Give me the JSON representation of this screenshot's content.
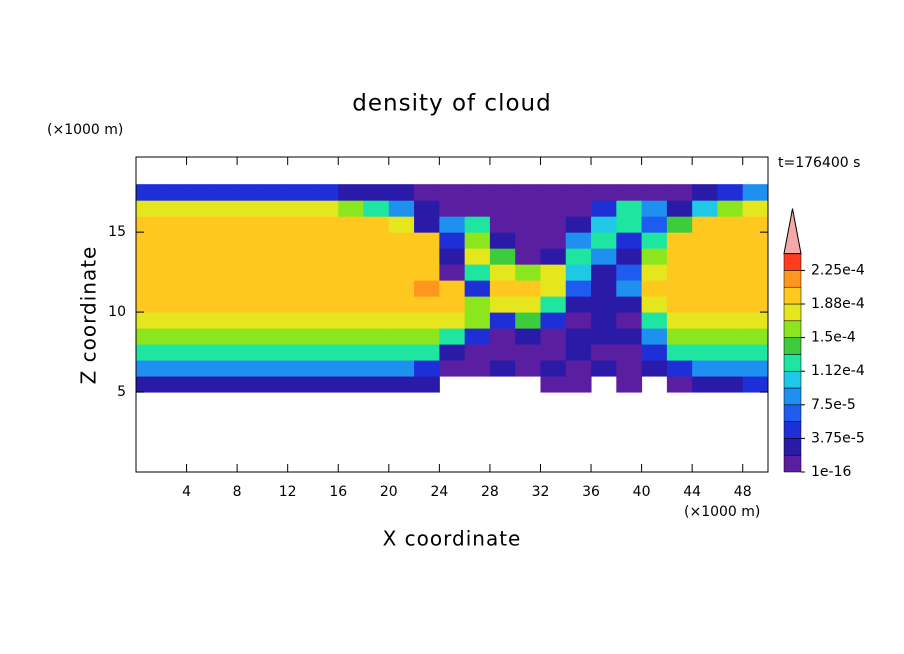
{
  "chart_data": {
    "type": "contour",
    "title": "density of cloud",
    "x_label": "X coordinate",
    "y_label": "Z coordinate",
    "x_unit": "(×1000 m)",
    "y_unit": "(×1000 m)",
    "time_label": "t=176400 s",
    "xlim": [
      0,
      50
    ],
    "ylim": [
      0,
      19.7
    ],
    "xticks": [
      4,
      8,
      12,
      16,
      20,
      24,
      28,
      32,
      36,
      40,
      44,
      48
    ],
    "yticks": [
      5,
      10,
      15
    ],
    "x": [
      1,
      3,
      5,
      7,
      9,
      11,
      13,
      15,
      17,
      19,
      21,
      23,
      25,
      27,
      29,
      31,
      33,
      35,
      37,
      39,
      41,
      43,
      45,
      47,
      49
    ],
    "z": [
      5.5,
      6.5,
      7.5,
      8.5,
      9.5,
      10.5,
      11.5,
      12.5,
      13.5,
      14.5,
      15.5,
      16.5,
      17.5
    ],
    "values": [
      [
        3e-05,
        3e-05,
        3e-05,
        3e-05,
        3e-05,
        3e-05,
        3e-05,
        3e-05,
        3e-05,
        3e-05,
        3e-05,
        2e-05,
        null,
        null,
        null,
        null,
        1e-05,
        1e-05,
        null,
        1e-05,
        null,
        1e-05,
        2e-05,
        3e-05,
        4e-05
      ],
      [
        8e-05,
        8e-05,
        8e-05,
        8e-05,
        8e-05,
        8e-05,
        8e-05,
        8e-05,
        8e-05,
        8e-05,
        8e-05,
        4e-05,
        1e-05,
        1e-05,
        2e-05,
        1e-05,
        2e-05,
        1e-05,
        2e-05,
        1e-05,
        2e-05,
        5e-05,
        8e-05,
        8e-05,
        8e-05
      ],
      [
        0.00012,
        0.00012,
        0.00012,
        0.00012,
        0.00012,
        0.00012,
        0.00012,
        0.00012,
        0.00012,
        0.00012,
        0.00012,
        0.00012,
        3e-05,
        1e-05,
        1e-05,
        1e-05,
        1e-05,
        3e-05,
        1e-05,
        1e-05,
        4e-05,
        0.000115,
        0.000115,
        0.000115,
        0.000115
      ],
      [
        0.00015,
        0.00015,
        0.00015,
        0.00015,
        0.00015,
        0.00015,
        0.00015,
        0.00015,
        0.00015,
        0.00015,
        0.00015,
        0.00015,
        0.00012,
        4e-05,
        1e-05,
        3e-05,
        1e-05,
        2e-05,
        2e-05,
        2e-05,
        8e-05,
        0.00015,
        0.00015,
        0.00015,
        0.00015
      ],
      [
        0.000175,
        0.000175,
        0.000175,
        0.000175,
        0.000175,
        0.000175,
        0.000175,
        0.000175,
        0.000175,
        0.000175,
        0.000175,
        0.000175,
        0.00017,
        0.00016,
        4e-05,
        0.00014,
        5e-05,
        1e-05,
        2e-05,
        1e-05,
        0.00012,
        0.00017,
        0.00017,
        0.00017,
        0.00017
      ],
      [
        0.000195,
        0.000195,
        0.000195,
        0.000195,
        0.000195,
        0.000195,
        0.000195,
        0.000195,
        0.000195,
        0.000195,
        0.000195,
        0.000195,
        0.00019,
        0.00015,
        0.00018,
        0.00017,
        0.00012,
        2e-05,
        3e-05,
        2e-05,
        0.00017,
        0.000195,
        0.000195,
        0.000195,
        0.000195
      ],
      [
        0.0002,
        0.0002,
        0.0002,
        0.0002,
        0.0002,
        0.0002,
        0.0002,
        0.0002,
        0.0002,
        0.0002,
        0.0002,
        0.00021,
        0.00019,
        5e-05,
        0.00019,
        0.0002,
        0.00017,
        6e-05,
        2e-05,
        8e-05,
        0.00019,
        0.000205,
        0.000205,
        0.000205,
        0.000205
      ],
      [
        0.0002,
        0.0002,
        0.0002,
        0.0002,
        0.0002,
        0.0002,
        0.0002,
        0.0002,
        0.0002,
        0.0002,
        0.0002,
        0.00019,
        1e-05,
        0.00012,
        0.00018,
        0.00015,
        0.00018,
        0.0001,
        3e-05,
        6e-05,
        0.00018,
        0.000205,
        0.000205,
        0.000205,
        0.000205
      ],
      [
        0.0002,
        0.0002,
        0.0002,
        0.0002,
        0.0002,
        0.0002,
        0.0002,
        0.0002,
        0.0002,
        0.0002,
        0.0002,
        0.00019,
        2e-05,
        0.00017,
        0.00014,
        1e-05,
        2e-05,
        0.00012,
        8e-05,
        3e-05,
        0.00015,
        0.0002,
        0.0002,
        0.0002,
        0.0002
      ],
      [
        0.0002,
        0.0002,
        0.0002,
        0.0002,
        0.0002,
        0.0002,
        0.0002,
        0.0002,
        0.0002,
        0.0002,
        0.0002,
        0.00019,
        5e-05,
        0.00016,
        2e-05,
        1e-05,
        1e-05,
        8e-05,
        0.00012,
        4e-05,
        0.00012,
        0.00019,
        0.0002,
        0.0002,
        0.0002
      ],
      [
        0.00019,
        0.00019,
        0.00019,
        0.00019,
        0.00019,
        0.00019,
        0.00019,
        0.00019,
        0.00019,
        0.00019,
        0.00018,
        3e-05,
        8e-05,
        0.00012,
        1e-05,
        1e-05,
        1e-05,
        3e-05,
        0.0001,
        0.00013,
        6e-05,
        0.00014,
        0.00019,
        0.0002,
        0.0002
      ],
      [
        0.00017,
        0.00017,
        0.00017,
        0.00017,
        0.00017,
        0.00017,
        0.00017,
        0.00017,
        0.00015,
        0.00013,
        8e-05,
        2e-05,
        1e-05,
        1e-05,
        1e-05,
        1e-05,
        1e-05,
        1e-05,
        4e-05,
        0.00012,
        9e-05,
        3e-05,
        0.0001,
        0.00016,
        0.00017
      ],
      [
        4e-05,
        4e-05,
        4e-05,
        4e-05,
        4e-05,
        4e-05,
        4e-05,
        4e-05,
        2e-05,
        2e-05,
        2e-05,
        1e-05,
        1e-05,
        1e-05,
        1e-05,
        1e-05,
        1e-05,
        1e-05,
        1e-05,
        1e-05,
        1e-05,
        1e-05,
        2e-05,
        5e-05,
        8e-05
      ]
    ],
    "levels": [
      1e-16,
      1.875e-05,
      3.75e-05,
      5.625e-05,
      7.5e-05,
      9.375e-05,
      0.0001125,
      0.00013125,
      0.00015,
      0.00016875,
      0.0001875,
      0.00020625,
      0.000225,
      0.00024375
    ],
    "colors": [
      "#5a1fa0",
      "#2a1aa8",
      "#1f2fd8",
      "#1e5cf0",
      "#1e90f0",
      "#1ec8e6",
      "#1ee6a0",
      "#3ccc3c",
      "#8ce61e",
      "#e6e61e",
      "#ffc81e",
      "#ff961e",
      "#ff3c1e"
    ],
    "over_color": "#f4a8a8",
    "colorbar_ticks": [
      {
        "value": 1e-16,
        "label": "1e-16"
      },
      {
        "value": 3.75e-05,
        "label": "3.75e-5"
      },
      {
        "value": 7.5e-05,
        "label": "7.5e-5"
      },
      {
        "value": 0.0001125,
        "label": "1.12e-4"
      },
      {
        "value": 0.00015,
        "label": "1.5e-4"
      },
      {
        "value": 0.0001875,
        "label": "1.88e-4"
      },
      {
        "value": 0.000225,
        "label": "2.25e-4"
      }
    ]
  }
}
